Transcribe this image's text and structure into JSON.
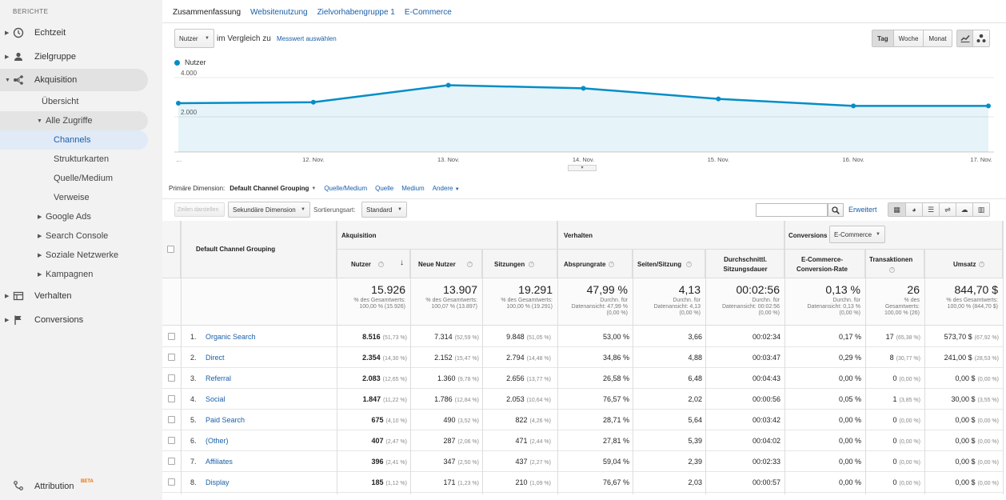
{
  "sidebar": {
    "heading": "BERICHTE",
    "top_items": [
      {
        "label": "Echtzeit",
        "icon": "clock-icon"
      },
      {
        "label": "Zielgruppe",
        "icon": "person-icon"
      },
      {
        "label": "Akquisition",
        "icon": "acquisition-icon"
      },
      {
        "label": "Verhalten",
        "icon": "behavior-icon"
      },
      {
        "label": "Conversions",
        "icon": "flag-icon"
      }
    ],
    "acq_children": {
      "overview": "Übersicht",
      "all_traffic": "Alle Zugriffe",
      "channels": "Channels",
      "treemaps": "Strukturkarten",
      "source_medium": "Quelle/Medium",
      "referrals": "Verweise",
      "google_ads": "Google Ads",
      "search_console": "Search Console",
      "social": "Soziale Netzwerke",
      "campaigns": "Kampagnen"
    },
    "attribution": {
      "label": "Attribution",
      "badge": "BETA"
    }
  },
  "tabs": [
    "Zusammenfassung",
    "Websitenutzung",
    "Zielvorhabengruppe 1",
    "E-Commerce"
  ],
  "metric_select": "Nutzer",
  "compare_text": "im Vergleich zu",
  "choose_metric": "Messwert auswählen",
  "period": [
    "Tag",
    "Woche",
    "Monat"
  ],
  "legend_label": "Nutzer",
  "chart_data": {
    "type": "area",
    "x": [
      "…",
      "12. Nov.",
      "13. Nov.",
      "14. Nov.",
      "15. Nov.",
      "16. Nov.",
      "17. Nov."
    ],
    "series": [
      {
        "name": "Nutzer",
        "values": [
          2490,
          2540,
          3410,
          3250,
          2710,
          2350,
          2350
        ]
      }
    ],
    "yticks": [
      "4.000",
      "2.000"
    ],
    "ylim": [
      0,
      4000
    ],
    "color": "#058dc7"
  },
  "dimension": {
    "label": "Primäre Dimension:",
    "current": "Default Channel Grouping",
    "links": [
      "Quelle/Medium",
      "Quelle",
      "Medium",
      "Andere"
    ]
  },
  "tools": {
    "plot_rows": "Zeilen darstellen",
    "secondary": "Sekundäre Dimension",
    "sort_label": "Sortierungsart:",
    "sort_value": "Standard",
    "advanced": "Erweitert"
  },
  "table": {
    "group_acq": "Akquisition",
    "group_beh": "Verhalten",
    "group_conv": "Conversions",
    "conv_select": "E-Commerce",
    "dim_header": "Default Channel Grouping",
    "cols": [
      "Nutzer",
      "Neue Nutzer",
      "Sitzungen",
      "Absprungrate",
      "Seiten/Sitzung",
      "Durchschnittl. Sitzungsdauer",
      "E-Commerce-Conversion-Rate",
      "Transaktionen",
      "Umsatz"
    ],
    "totals": [
      {
        "big": "15.926",
        "sub1": "% des Gesamtwerts:",
        "sub2": "100,00 % (15.926)"
      },
      {
        "big": "13.907",
        "sub1": "% des Gesamtwerts:",
        "sub2": "100,07 % (13.897)"
      },
      {
        "big": "19.291",
        "sub1": "% des Gesamtwerts:",
        "sub2": "100,00 % (19.291)"
      },
      {
        "big": "47,99 %",
        "sub1": "Durchn. für",
        "sub2": "Datenansicht: 47,99 %",
        "sub3": "(0,00 %)"
      },
      {
        "big": "4,13",
        "sub1": "Durchn. für",
        "sub2": "Datenansicht: 4,13",
        "sub3": "(0,00 %)"
      },
      {
        "big": "00:02:56",
        "sub1": "Durchn. für",
        "sub2": "Datenansicht: 00:02:56",
        "sub3": "(0,00 %)"
      },
      {
        "big": "0,13 %",
        "sub1": "Durchn. für",
        "sub2": "Datenansicht: 0,13 %",
        "sub3": "(0,00 %)"
      },
      {
        "big": "26",
        "sub1": "% des",
        "sub2": "Gesamtwerts:",
        "sub3": "100,00 % (26)"
      },
      {
        "big": "844,70 $",
        "sub1": "% des Gesamtwerts:",
        "sub2": "100,00 % (844,70 $)"
      }
    ],
    "rows": [
      {
        "n": "1.",
        "name": "Organic Search",
        "users": "8.516",
        "users_pct": "(51,73 %)",
        "new": "7.314",
        "new_pct": "(52,59 %)",
        "sess": "9.848",
        "sess_pct": "(51,05 %)",
        "bounce": "53,00 %",
        "pps": "3,66",
        "dur": "00:02:34",
        "cr": "0,17 %",
        "tx": "17",
        "tx_pct": "(65,38 %)",
        "rev": "573,70 $",
        "rev_pct": "(67,92 %)"
      },
      {
        "n": "2.",
        "name": "Direct",
        "users": "2.354",
        "users_pct": "(14,30 %)",
        "new": "2.152",
        "new_pct": "(15,47 %)",
        "sess": "2.794",
        "sess_pct": "(14,48 %)",
        "bounce": "34,86 %",
        "pps": "4,88",
        "dur": "00:03:47",
        "cr": "0,29 %",
        "tx": "8",
        "tx_pct": "(30,77 %)",
        "rev": "241,00 $",
        "rev_pct": "(28,53 %)"
      },
      {
        "n": "3.",
        "name": "Referral",
        "users": "2.083",
        "users_pct": "(12,65 %)",
        "new": "1.360",
        "new_pct": "(9,78 %)",
        "sess": "2.656",
        "sess_pct": "(13,77 %)",
        "bounce": "26,58 %",
        "pps": "6,48",
        "dur": "00:04:43",
        "cr": "0,00 %",
        "tx": "0",
        "tx_pct": "(0,00 %)",
        "rev": "0,00 $",
        "rev_pct": "(0,00 %)"
      },
      {
        "n": "4.",
        "name": "Social",
        "users": "1.847",
        "users_pct": "(11,22 %)",
        "new": "1.786",
        "new_pct": "(12,84 %)",
        "sess": "2.053",
        "sess_pct": "(10,64 %)",
        "bounce": "76,57 %",
        "pps": "2,02",
        "dur": "00:00:56",
        "cr": "0,05 %",
        "tx": "1",
        "tx_pct": "(3,85 %)",
        "rev": "30,00 $",
        "rev_pct": "(3,55 %)"
      },
      {
        "n": "5.",
        "name": "Paid Search",
        "users": "675",
        "users_pct": "(4,10 %)",
        "new": "490",
        "new_pct": "(3,52 %)",
        "sess": "822",
        "sess_pct": "(4,26 %)",
        "bounce": "28,71 %",
        "pps": "5,64",
        "dur": "00:03:42",
        "cr": "0,00 %",
        "tx": "0",
        "tx_pct": "(0,00 %)",
        "rev": "0,00 $",
        "rev_pct": "(0,00 %)"
      },
      {
        "n": "6.",
        "name": "(Other)",
        "users": "407",
        "users_pct": "(2,47 %)",
        "new": "287",
        "new_pct": "(2,06 %)",
        "sess": "471",
        "sess_pct": "(2,44 %)",
        "bounce": "27,81 %",
        "pps": "5,39",
        "dur": "00:04:02",
        "cr": "0,00 %",
        "tx": "0",
        "tx_pct": "(0,00 %)",
        "rev": "0,00 $",
        "rev_pct": "(0,00 %)"
      },
      {
        "n": "7.",
        "name": "Affiliates",
        "users": "396",
        "users_pct": "(2,41 %)",
        "new": "347",
        "new_pct": "(2,50 %)",
        "sess": "437",
        "sess_pct": "(2,27 %)",
        "bounce": "59,04 %",
        "pps": "2,39",
        "dur": "00:02:33",
        "cr": "0,00 %",
        "tx": "0",
        "tx_pct": "(0,00 %)",
        "rev": "0,00 $",
        "rev_pct": "(0,00 %)"
      },
      {
        "n": "8.",
        "name": "Display",
        "users": "185",
        "users_pct": "(1,12 %)",
        "new": "171",
        "new_pct": "(1,23 %)",
        "sess": "210",
        "sess_pct": "(1,09 %)",
        "bounce": "76,67 %",
        "pps": "2,03",
        "dur": "00:00:57",
        "cr": "0,00 %",
        "tx": "0",
        "tx_pct": "(0,00 %)",
        "rev": "0,00 $",
        "rev_pct": "(0,00 %)"
      }
    ]
  }
}
